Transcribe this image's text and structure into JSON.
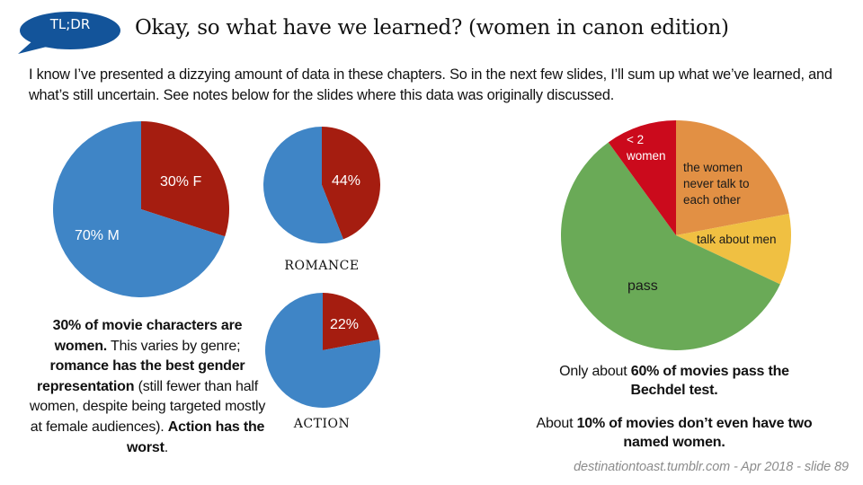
{
  "header": {
    "badge": "TL;DR",
    "title": "Okay, so what have we learned? (women in canon edition)"
  },
  "intro": "I know I’ve presented a dizzying amount of data in these chapters.  So in the next few slides, I’ll sum up what we’ve learned, and what’s still uncertain. See notes below for the slides where this data was originally discussed.",
  "colors": {
    "badge": "#13549a",
    "female": "#a51d10",
    "male": "#3f85c6",
    "orange": "#e29044",
    "yellow": "#f0c042",
    "green": "#6aaa57",
    "red": "#cb0a1c"
  },
  "chart_data": [
    {
      "type": "pie",
      "title": "",
      "name": "all-characters",
      "slices": [
        {
          "label": "30% F",
          "value": 30,
          "color": "#a51d10"
        },
        {
          "label": "70% M",
          "value": 70,
          "color": "#3f85c6"
        }
      ]
    },
    {
      "type": "pie",
      "title": "ROMANCE",
      "name": "romance",
      "slices": [
        {
          "label": "44%",
          "value": 44,
          "color": "#a51d10"
        },
        {
          "label": "",
          "value": 56,
          "color": "#3f85c6"
        }
      ]
    },
    {
      "type": "pie",
      "title": "ACTION",
      "name": "action",
      "slices": [
        {
          "label": "22%",
          "value": 22,
          "color": "#a51d10"
        },
        {
          "label": "",
          "value": 78,
          "color": "#3f85c6"
        }
      ]
    },
    {
      "type": "pie",
      "title": "",
      "name": "bechdel",
      "slices": [
        {
          "label": "the women never talk to each other",
          "lines": [
            "the women",
            "never talk to",
            "each other"
          ],
          "value": 22,
          "color": "#e29044"
        },
        {
          "label": "talk about men",
          "lines": [
            "talk about men"
          ],
          "value": 10,
          "color": "#f0c042"
        },
        {
          "label": "pass",
          "lines": [
            "pass"
          ],
          "value": 58,
          "color": "#6aaa57"
        },
        {
          "label": "< 2 women",
          "lines": [
            "< 2",
            "women"
          ],
          "value": 10,
          "color": "#cb0a1c"
        }
      ]
    }
  ],
  "left_summary": [
    {
      "text": "30% of movie characters are women.",
      "bold": true
    },
    {
      "text": " This varies by genre; ",
      "bold": false
    },
    {
      "text": "romance has the best gender representation",
      "bold": true
    },
    {
      "text": " (still fewer than half women, despite being targeted mostly at female audiences). ",
      "bold": false
    },
    {
      "text": "Action has the worst",
      "bold": true
    },
    {
      "text": ".",
      "bold": false
    }
  ],
  "right_summary1": [
    {
      "text": "Only about ",
      "bold": false
    },
    {
      "text": "60% of movies pass the Bechdel test.",
      "bold": true
    }
  ],
  "right_summary2": [
    {
      "text": "About ",
      "bold": false
    },
    {
      "text": "10% of movies don’t even have two named women.",
      "bold": true
    }
  ],
  "footer": "destinationtoast.tumblr.com - Apr 2018 - slide  89"
}
